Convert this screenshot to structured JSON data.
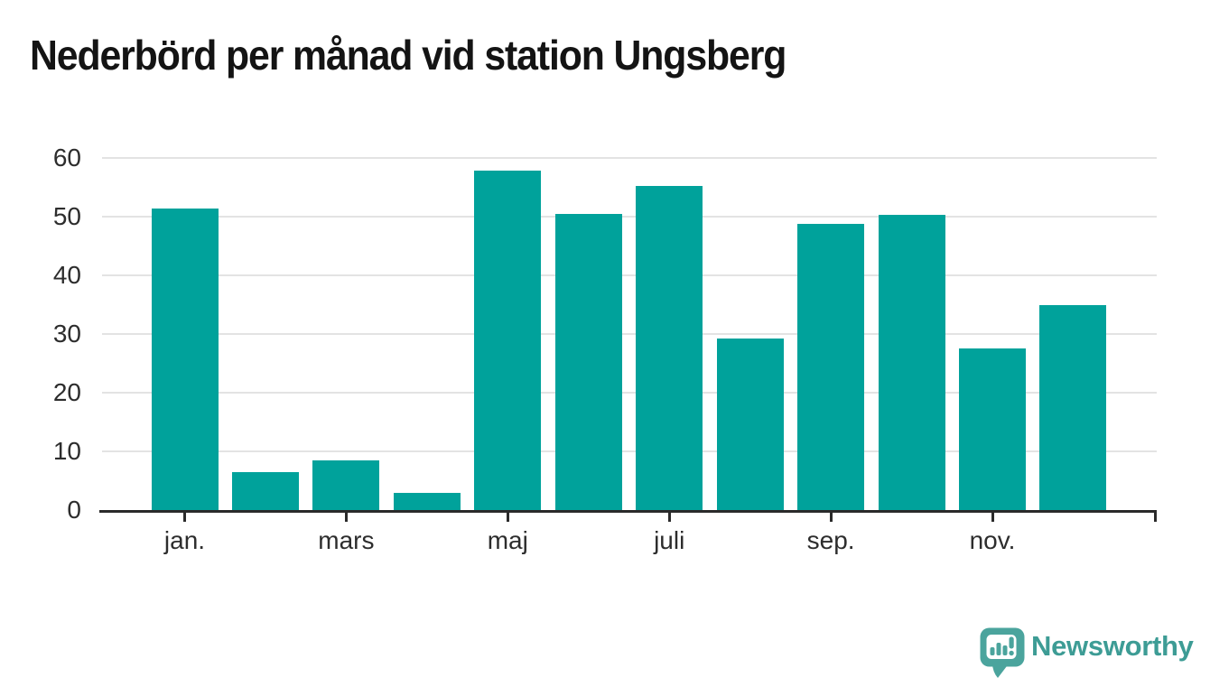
{
  "chart_data": {
    "type": "bar",
    "title": "Nederbörd per månad vid station Ungsberg",
    "categories": [
      "jan.",
      "",
      "mars",
      "",
      "maj",
      "",
      "juli",
      "",
      "sep.",
      "",
      "nov.",
      ""
    ],
    "x_tick_labels": [
      "jan.",
      "mars",
      "maj",
      "juli",
      "sep.",
      "nov."
    ],
    "values": [
      51.4,
      6.5,
      8.5,
      2.9,
      57.8,
      50.4,
      55.2,
      29.3,
      48.7,
      50.3,
      27.5,
      34.9
    ],
    "y_ticks": [
      0,
      10,
      20,
      30,
      40,
      50,
      60
    ],
    "ylim": [
      0,
      60
    ],
    "grid": "horizontal",
    "legend": "none",
    "bar_color": "#00a29b"
  },
  "colors": {
    "bar": "#00a29b",
    "axis": "#2a2a2a",
    "grid": "#e3e3e3",
    "tick_text": "#2d2d2d",
    "title_text": "#141414",
    "logo_text": "#3d9c95",
    "logo_bubble": "#4ba49d"
  },
  "logo": {
    "label": "Newsworthy",
    "icon": "bar-chart-speech-bubble-icon"
  }
}
